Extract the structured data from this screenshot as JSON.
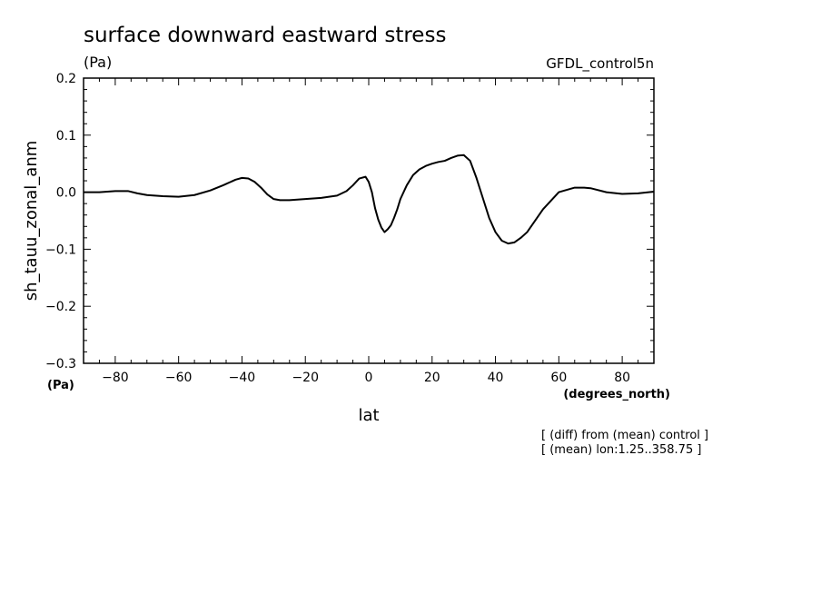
{
  "chart_data": {
    "type": "line",
    "title": "surface downward eastward stress",
    "title_units": "(Pa)",
    "source_label": "GFDL_control5n",
    "ylabel": "sh_tauu_zonal_anm",
    "y_units": "(Pa)",
    "xlabel": "lat",
    "x_units": "(degrees_north)",
    "xlim": [
      -90,
      90
    ],
    "ylim": [
      -0.3,
      0.2
    ],
    "x_ticks": [
      -80,
      -60,
      -40,
      -20,
      0,
      20,
      40,
      60,
      80
    ],
    "x_tick_labels": [
      "−80",
      "−60",
      "−40",
      "−20",
      "0",
      "20",
      "40",
      "60",
      "80"
    ],
    "y_ticks": [
      0.2,
      0.1,
      0.0,
      -0.1,
      -0.2,
      -0.3
    ],
    "y_tick_labels": [
      "0.2",
      "0.1",
      "0.0",
      "−0.1",
      "−0.2",
      "−0.3"
    ],
    "notes": [
      "[ (diff) from (mean) control ]",
      "[ (mean) lon:1.25..358.75 ]"
    ],
    "series": [
      {
        "name": "sh_tauu_zonal_anm",
        "x": [
          -90,
          -85,
          -80,
          -76,
          -73,
          -70,
          -65,
          -60,
          -55,
          -50,
          -46,
          -42,
          -40,
          -38,
          -36,
          -34,
          -32,
          -30,
          -28,
          -25,
          -20,
          -15,
          -10,
          -7,
          -5,
          -3,
          -1,
          0,
          1,
          2,
          3,
          4,
          5,
          6,
          7,
          8,
          9,
          10,
          12,
          14,
          16,
          18,
          20,
          22,
          24,
          26,
          28,
          30,
          32,
          34,
          36,
          38,
          40,
          42,
          44,
          46,
          48,
          50,
          55,
          60,
          65,
          68,
          70,
          75,
          80,
          85,
          90
        ],
        "values": [
          0.0,
          0.0,
          0.002,
          0.002,
          -0.002,
          -0.005,
          -0.007,
          -0.008,
          -0.005,
          0.003,
          0.012,
          0.022,
          0.025,
          0.024,
          0.018,
          0.008,
          -0.004,
          -0.012,
          -0.014,
          -0.014,
          -0.012,
          -0.01,
          -0.006,
          0.002,
          0.012,
          0.024,
          0.027,
          0.018,
          0.0,
          -0.028,
          -0.048,
          -0.062,
          -0.07,
          -0.065,
          -0.058,
          -0.045,
          -0.03,
          -0.012,
          0.012,
          0.03,
          0.04,
          0.046,
          0.05,
          0.053,
          0.055,
          0.06,
          0.064,
          0.065,
          0.055,
          0.025,
          -0.01,
          -0.045,
          -0.07,
          -0.085,
          -0.09,
          -0.088,
          -0.08,
          -0.07,
          -0.03,
          0.0,
          0.008,
          0.008,
          0.007,
          0.0,
          -0.003,
          -0.002,
          0.001
        ]
      }
    ]
  }
}
